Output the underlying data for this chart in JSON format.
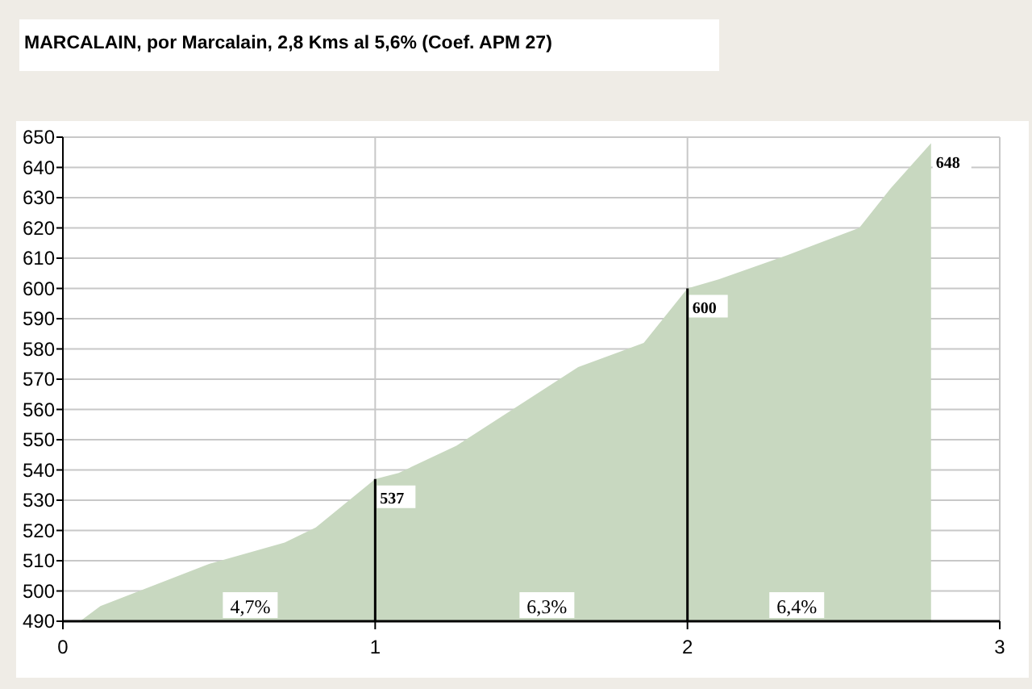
{
  "chart_data": {
    "type": "area",
    "title": "MARCALAIN, por Marcalain,  2,8 Kms al 5,6%    (Coef. APM  27)",
    "x": [
      0.055,
      0.12,
      0.47,
      0.71,
      0.81,
      1,
      1.075,
      1.26,
      1.41,
      1.65,
      1.86,
      2,
      2.1,
      2.32,
      2.55,
      2.65,
      2.78
    ],
    "series": [
      {
        "color": "#c8d8c0",
        "values": [
          490,
          495,
          509,
          516,
          521,
          537,
          539,
          548,
          558,
          574,
          582,
          600,
          603,
          611,
          620,
          633,
          648
        ]
      }
    ],
    "xlim": [
      0,
      3
    ],
    "xticks": [
      0,
      1,
      2,
      3
    ],
    "ylim": [
      490,
      650
    ],
    "yticks": [
      490,
      500,
      510,
      520,
      530,
      540,
      550,
      560,
      570,
      580,
      590,
      600,
      610,
      620,
      630,
      640,
      650
    ],
    "grid": true,
    "annotations": [
      {
        "text": "537",
        "x": 1,
        "y": 537
      },
      {
        "text": "600",
        "x": 2,
        "y": 600
      },
      {
        "text": "648",
        "x": 2.78,
        "y": 648
      },
      {
        "text": "4,7%",
        "x": 0.6,
        "y": 490
      },
      {
        "text": "6,3%",
        "x": 1.55,
        "y": 490
      },
      {
        "text": "6,4%",
        "x": 2.35,
        "y": 490
      }
    ]
  }
}
